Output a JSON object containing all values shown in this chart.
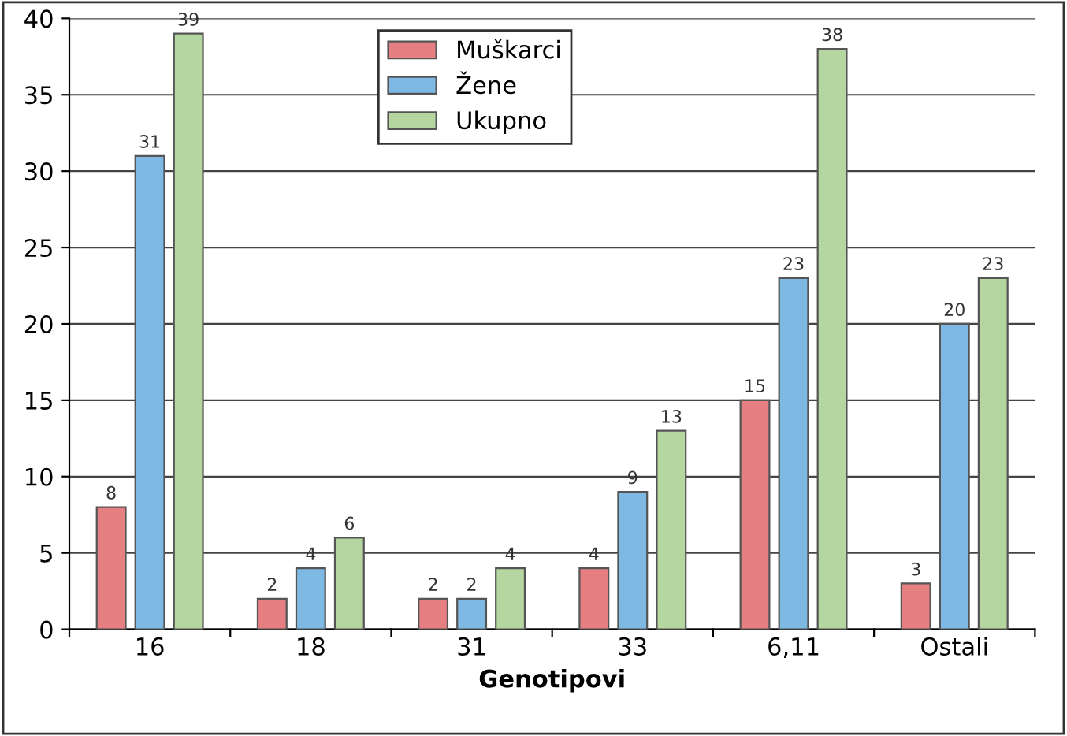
{
  "chart_data": {
    "type": "bar",
    "xlabel": "Genotipovi",
    "categories": [
      "16",
      "18",
      "31",
      "33",
      "6,11",
      "Ostali"
    ],
    "series": [
      {
        "name": "Muškarci",
        "color": "#e57f82",
        "values": [
          8,
          2,
          2,
          4,
          15,
          3
        ]
      },
      {
        "name": "Žene",
        "color": "#7db9e2",
        "values": [
          31,
          4,
          2,
          9,
          23,
          20
        ]
      },
      {
        "name": "Ukupno",
        "color": "#b5d6a0",
        "values": [
          39,
          6,
          4,
          13,
          38,
          23
        ]
      }
    ],
    "ylim": [
      0,
      40
    ],
    "yticks": [
      0,
      5,
      10,
      15,
      20,
      25,
      30,
      35,
      40
    ],
    "grid": "y",
    "legend": "top",
    "data_labels": true
  }
}
